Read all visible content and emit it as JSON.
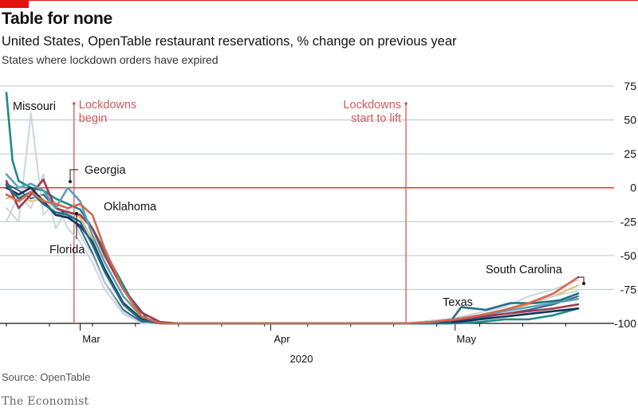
{
  "header": {
    "title": "Table for none",
    "subtitle": "United States, OpenTable restaurant reservations, % change on previous year",
    "subsubtitle": "States where lockdown orders have expired"
  },
  "footer": {
    "source": "Source: OpenTable",
    "brand": "The Economist"
  },
  "colors": {
    "accent": "#e3120b",
    "gridline": "#b7c6cf",
    "zero_line": "#e3120b",
    "event_line": "#d7575b",
    "background_series": "#c5d2da"
  },
  "chart_data": {
    "type": "line",
    "title": "Table for none",
    "subtitle": "United States, OpenTable restaurant reservations, % change on previous year",
    "ylabel": "",
    "ylim": [
      -100,
      75
    ],
    "yticks": [
      75,
      50,
      25,
      0,
      -25,
      -50,
      -75,
      -100
    ],
    "ytick_labels": [
      "75",
      "50",
      "25",
      "0",
      "-25",
      "-50",
      "-75",
      "-100"
    ],
    "x_range": [
      "2020-02-18",
      "2020-05-24"
    ],
    "x_months": [
      {
        "label": "Mar",
        "date": "2020-03-01"
      },
      {
        "label": "Apr",
        "date": "2020-04-01"
      },
      {
        "label": "May",
        "date": "2020-05-01"
      }
    ],
    "x_year_label": "2020",
    "grid": true,
    "events": [
      {
        "label_lines": [
          "Lockdowns",
          "begin"
        ],
        "date": "2020-02-29"
      },
      {
        "label_lines": [
          "Lockdowns",
          "start to lift"
        ],
        "date": "2020-04-23"
      }
    ],
    "series": [
      {
        "name": "Missouri",
        "color": "#1e8a88",
        "x": [
          "2020-02-18",
          "2020-02-19",
          "2020-02-20",
          "2020-02-22",
          "2020-02-24",
          "2020-02-26",
          "2020-02-28",
          "2020-03-01",
          "2020-03-03",
          "2020-03-06",
          "2020-03-09",
          "2020-03-12",
          "2020-03-15",
          "2020-04-15",
          "2020-04-23",
          "2020-04-27",
          "2020-05-01",
          "2020-05-05",
          "2020-05-09",
          "2020-05-13",
          "2020-05-17",
          "2020-05-21"
        ],
        "values": [
          70,
          20,
          5,
          0,
          -2,
          -8,
          -12,
          -16,
          -30,
          -55,
          -80,
          -97,
          -100,
          -100,
          -100,
          -100,
          -100,
          -99,
          -97,
          -97,
          -94,
          -89
        ]
      },
      {
        "name": "Georgia",
        "color": "#9e3b4e",
        "x": [
          "2020-02-18",
          "2020-02-20",
          "2020-02-22",
          "2020-02-24",
          "2020-02-26",
          "2020-02-28",
          "2020-03-01",
          "2020-03-03",
          "2020-03-05",
          "2020-03-08",
          "2020-03-11",
          "2020-03-14",
          "2020-03-17",
          "2020-04-15",
          "2020-04-23",
          "2020-04-27",
          "2020-05-01",
          "2020-05-05",
          "2020-05-09",
          "2020-05-13",
          "2020-05-17",
          "2020-05-21"
        ],
        "values": [
          5,
          -15,
          -5,
          6,
          -15,
          -18,
          -20,
          -30,
          -50,
          -75,
          -92,
          -99,
          -100,
          -100,
          -100,
          -99,
          -98,
          -95,
          -93,
          -91,
          -89,
          -86
        ]
      },
      {
        "name": "Oklahoma",
        "color": "#5aa0b8",
        "x": [
          "2020-02-18",
          "2020-02-20",
          "2020-02-22",
          "2020-02-24",
          "2020-02-26",
          "2020-02-28",
          "2020-03-01",
          "2020-03-03",
          "2020-03-05",
          "2020-03-08",
          "2020-03-11",
          "2020-03-14",
          "2020-03-17",
          "2020-04-15",
          "2020-04-23",
          "2020-04-27",
          "2020-05-01",
          "2020-05-05",
          "2020-05-09",
          "2020-05-13",
          "2020-05-17",
          "2020-05-21"
        ],
        "values": [
          10,
          0,
          3,
          -2,
          -15,
          0,
          -10,
          -35,
          -55,
          -80,
          -95,
          -100,
          -100,
          -100,
          -100,
          -99,
          -97,
          -94,
          -91,
          -88,
          -85,
          -82
        ]
      },
      {
        "name": "Florida",
        "color": "#13355c",
        "x": [
          "2020-02-18",
          "2020-02-20",
          "2020-02-22",
          "2020-02-24",
          "2020-02-26",
          "2020-02-28",
          "2020-03-01",
          "2020-03-03",
          "2020-03-05",
          "2020-03-08",
          "2020-03-11",
          "2020-03-14",
          "2020-03-17",
          "2020-04-15",
          "2020-04-23",
          "2020-04-27",
          "2020-05-01",
          "2020-05-05",
          "2020-05-09",
          "2020-05-13",
          "2020-05-17",
          "2020-05-21"
        ],
        "values": [
          0,
          -5,
          0,
          -10,
          -20,
          -22,
          -28,
          -40,
          -60,
          -85,
          -97,
          -100,
          -100,
          -100,
          -100,
          -100,
          -99,
          -97,
          -95,
          -93,
          -91,
          -89
        ]
      },
      {
        "name": "Texas",
        "color": "#1f6f8b",
        "x": [
          "2020-02-18",
          "2020-02-20",
          "2020-02-22",
          "2020-02-24",
          "2020-02-26",
          "2020-02-28",
          "2020-03-01",
          "2020-03-03",
          "2020-03-05",
          "2020-03-08",
          "2020-03-11",
          "2020-03-14",
          "2020-03-17",
          "2020-04-15",
          "2020-04-23",
          "2020-04-30",
          "2020-05-02",
          "2020-05-06",
          "2020-05-10",
          "2020-05-14",
          "2020-05-18",
          "2020-05-21"
        ],
        "values": [
          2,
          -8,
          -3,
          -12,
          -18,
          -20,
          -25,
          -42,
          -62,
          -86,
          -98,
          -100,
          -100,
          -100,
          -100,
          -100,
          -88,
          -90,
          -85,
          -85,
          -83,
          -78
        ]
      },
      {
        "name": "South Carolina",
        "color": "#d5674f",
        "x": [
          "2020-02-18",
          "2020-02-20",
          "2020-02-22",
          "2020-02-24",
          "2020-02-26",
          "2020-02-28",
          "2020-03-01",
          "2020-03-03",
          "2020-03-05",
          "2020-03-08",
          "2020-03-11",
          "2020-03-14",
          "2020-03-17",
          "2020-04-15",
          "2020-04-23",
          "2020-04-27",
          "2020-05-01",
          "2020-05-05",
          "2020-05-09",
          "2020-05-13",
          "2020-05-17",
          "2020-05-21"
        ],
        "values": [
          -5,
          -10,
          -3,
          -10,
          -12,
          -15,
          -12,
          -20,
          -45,
          -75,
          -95,
          -100,
          -100,
          -100,
          -100,
          -99,
          -97,
          -94,
          -90,
          -85,
          -78,
          -66
        ]
      },
      {
        "name": "",
        "color": "#e1b25a",
        "x": [
          "2020-02-18",
          "2020-02-20",
          "2020-02-22",
          "2020-02-24",
          "2020-02-26",
          "2020-02-28",
          "2020-03-01",
          "2020-03-03",
          "2020-03-05",
          "2020-03-08",
          "2020-03-11",
          "2020-03-14",
          "2020-03-17",
          "2020-04-15",
          "2020-04-23",
          "2020-04-27",
          "2020-05-01",
          "2020-05-05",
          "2020-05-09",
          "2020-05-13",
          "2020-05-17",
          "2020-05-21"
        ],
        "values": [
          -8,
          -5,
          -10,
          -8,
          -20,
          -18,
          -22,
          -38,
          -60,
          -84,
          -96,
          -100,
          -100,
          -100,
          -100,
          -99,
          -98,
          -95,
          -91,
          -86,
          -80,
          -72
        ]
      },
      {
        "name": "",
        "color": "#1a4f7a",
        "x": [
          "2020-02-18",
          "2020-02-20",
          "2020-02-22",
          "2020-02-24",
          "2020-02-26",
          "2020-02-28",
          "2020-03-01",
          "2020-03-03",
          "2020-03-05",
          "2020-03-08",
          "2020-03-11",
          "2020-03-14",
          "2020-03-17",
          "2020-04-15",
          "2020-04-23",
          "2020-04-27",
          "2020-05-01",
          "2020-05-05",
          "2020-05-09",
          "2020-05-13",
          "2020-05-17",
          "2020-05-21"
        ],
        "values": [
          3,
          -2,
          -8,
          -5,
          -15,
          -20,
          -30,
          -48,
          -70,
          -90,
          -99,
          -100,
          -100,
          -100,
          -100,
          -100,
          -99,
          -96,
          -93,
          -90,
          -86,
          -80
        ]
      },
      {
        "name": "",
        "color": "#c5d2da",
        "x": [
          "2020-02-18",
          "2020-02-20",
          "2020-02-22",
          "2020-02-24",
          "2020-02-26",
          "2020-02-28",
          "2020-03-01",
          "2020-03-03",
          "2020-03-05",
          "2020-03-08",
          "2020-03-11",
          "2020-03-14",
          "2020-03-17",
          "2020-04-15",
          "2020-04-23",
          "2020-05-01",
          "2020-05-05",
          "2020-05-09",
          "2020-05-13",
          "2020-05-17",
          "2020-05-21"
        ],
        "values": [
          -15,
          -25,
          55,
          -20,
          -10,
          -30,
          -40,
          -55,
          -75,
          -93,
          -100,
          -100,
          -100,
          -100,
          -100,
          -96,
          -92,
          -88,
          -80,
          -75,
          -68
        ]
      },
      {
        "name": "",
        "color": "#c5d2da",
        "x": [
          "2020-02-18",
          "2020-02-20",
          "2020-02-22",
          "2020-02-24",
          "2020-02-26",
          "2020-02-28",
          "2020-03-01",
          "2020-03-03",
          "2020-03-05",
          "2020-03-08",
          "2020-03-11",
          "2020-03-14",
          "2020-03-17",
          "2020-04-15",
          "2020-04-23",
          "2020-05-01",
          "2020-05-05",
          "2020-05-09",
          "2020-05-13",
          "2020-05-17",
          "2020-05-21"
        ],
        "values": [
          -25,
          -5,
          -15,
          10,
          -30,
          -15,
          -35,
          -50,
          -70,
          -92,
          -100,
          -100,
          -100,
          -100,
          -100,
          -98,
          -95,
          -90,
          -85,
          -80,
          -76
        ]
      }
    ],
    "annotations": [
      {
        "label": "Missouri",
        "series": "Missouri"
      },
      {
        "label": "Georgia",
        "series": "Georgia"
      },
      {
        "label": "Oklahoma",
        "series": "Oklahoma"
      },
      {
        "label": "Florida",
        "series": "Florida"
      },
      {
        "label": "Texas",
        "series": "Texas"
      },
      {
        "label": "South Carolina",
        "series": "South Carolina"
      }
    ]
  }
}
